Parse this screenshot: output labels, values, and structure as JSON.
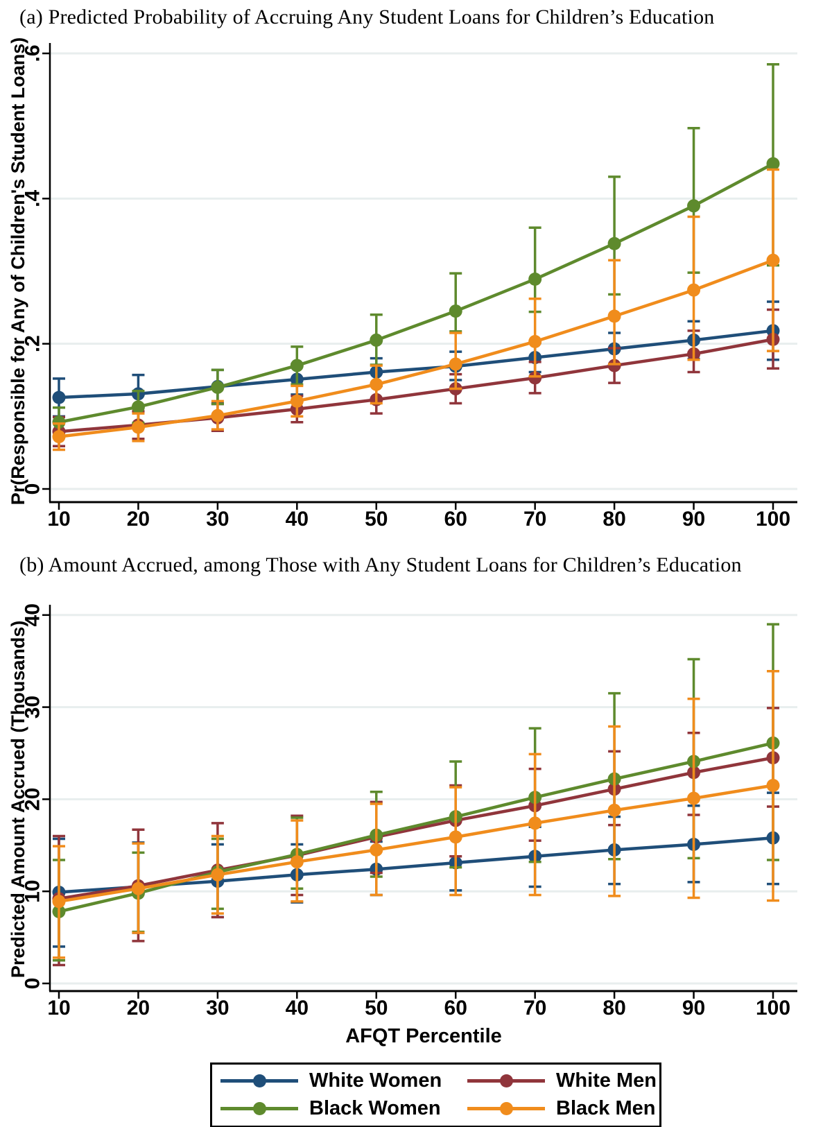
{
  "panels": [
    {
      "title": "(a)  Predicted Probability of Accruing Any Student Loans for Children’s Education"
    },
    {
      "title": "(b)  Amount Accrued, among Those with Any Student Loans for Children’s Education"
    }
  ],
  "style": {
    "grid_color": "#e8eeee",
    "axis_color": "#000000",
    "background": "#ffffff"
  },
  "legend": {
    "entries": [
      {
        "label": "White Women",
        "color": "#1f4e79"
      },
      {
        "label": "White Men",
        "color": "#90353b"
      },
      {
        "label": "Black Women",
        "color": "#5e8a2d"
      },
      {
        "label": "Black Men",
        "color": "#f08c1c"
      }
    ]
  },
  "chart_data": [
    {
      "type": "line",
      "title": "(a) Predicted Probability of Accruing Any Student Loans for Children's Education",
      "ylabel": "Pr(Responsible for Any of Children's Student Loans)",
      "xlabel": "",
      "ylim": [
        0,
        0.6
      ],
      "yticks": {
        "values": [
          0,
          0.2,
          0.4,
          0.6
        ],
        "labels": [
          "0",
          ".2",
          ".4",
          ".6"
        ]
      },
      "x": [
        10,
        20,
        30,
        40,
        50,
        60,
        70,
        80,
        90,
        100
      ],
      "grid": true,
      "legend_position": "bottom",
      "series": [
        {
          "name": "White Women",
          "color": "#1f4e79",
          "values": [
            0.126,
            0.131,
            0.141,
            0.151,
            0.161,
            0.169,
            0.181,
            0.193,
            0.205,
            0.218
          ],
          "ci_low": [
            0.1,
            0.106,
            0.118,
            0.13,
            0.142,
            0.15,
            0.161,
            0.172,
            0.179,
            0.178
          ],
          "ci_high": [
            0.152,
            0.157,
            0.164,
            0.172,
            0.18,
            0.189,
            0.201,
            0.215,
            0.231,
            0.258
          ]
        },
        {
          "name": "White Men",
          "color": "#90353b",
          "values": [
            0.079,
            0.088,
            0.098,
            0.11,
            0.123,
            0.138,
            0.153,
            0.17,
            0.186,
            0.206
          ],
          "ci_low": [
            0.059,
            0.069,
            0.08,
            0.092,
            0.104,
            0.118,
            0.132,
            0.146,
            0.161,
            0.166
          ],
          "ci_high": [
            0.099,
            0.107,
            0.117,
            0.128,
            0.142,
            0.158,
            0.175,
            0.194,
            0.218,
            0.247
          ]
        },
        {
          "name": "Black Women",
          "color": "#5e8a2d",
          "values": [
            0.092,
            0.113,
            0.14,
            0.17,
            0.205,
            0.245,
            0.289,
            0.338,
            0.39,
            0.448
          ],
          "ci_low": [
            0.072,
            0.091,
            0.117,
            0.144,
            0.171,
            0.217,
            0.244,
            0.268,
            0.298,
            0.308
          ],
          "ci_high": [
            0.112,
            0.135,
            0.164,
            0.196,
            0.24,
            0.297,
            0.36,
            0.43,
            0.497,
            0.585
          ]
        },
        {
          "name": "Black Men",
          "color": "#f08c1c",
          "values": [
            0.072,
            0.085,
            0.101,
            0.121,
            0.144,
            0.172,
            0.203,
            0.238,
            0.274,
            0.315
          ],
          "ci_low": [
            0.054,
            0.066,
            0.082,
            0.1,
            0.118,
            0.138,
            0.155,
            0.172,
            0.178,
            0.19
          ],
          "ci_high": [
            0.09,
            0.104,
            0.121,
            0.142,
            0.17,
            0.215,
            0.262,
            0.315,
            0.375,
            0.44
          ]
        }
      ]
    },
    {
      "type": "line",
      "title": "(b) Amount Accrued, among Those with Any Student Loans for Children's Education",
      "ylabel": "Predicted Amount Accrued (Thousands)",
      "xlabel": "AFQT Percentile",
      "ylim": [
        0,
        40
      ],
      "yticks": {
        "values": [
          0,
          10,
          20,
          30,
          40
        ],
        "labels": [
          "0",
          "10",
          "20",
          "30",
          "40"
        ]
      },
      "x": [
        10,
        20,
        30,
        40,
        50,
        60,
        70,
        80,
        90,
        100
      ],
      "grid": true,
      "legend_position": "bottom",
      "series": [
        {
          "name": "White Women",
          "color": "#1f4e79",
          "values": [
            9.9,
            10.5,
            11.1,
            11.8,
            12.4,
            13.1,
            13.8,
            14.5,
            15.1,
            15.8
          ],
          "ci_low": [
            4.0,
            5.5,
            7.2,
            8.8,
            9.6,
            10.1,
            10.5,
            10.8,
            11.0,
            10.8
          ],
          "ci_high": [
            15.7,
            15.3,
            15.1,
            15.1,
            15.4,
            16.0,
            17.0,
            18.1,
            19.3,
            20.7
          ]
        },
        {
          "name": "White Men",
          "color": "#90353b",
          "values": [
            9.2,
            10.6,
            12.3,
            13.9,
            15.9,
            17.7,
            19.3,
            21.1,
            22.9,
            24.5
          ],
          "ci_low": [
            2.0,
            4.6,
            7.2,
            9.6,
            12.0,
            13.8,
            15.5,
            17.2,
            18.3,
            19.2
          ],
          "ci_high": [
            16.0,
            16.7,
            17.4,
            18.2,
            19.7,
            21.5,
            23.3,
            25.2,
            27.2,
            29.9
          ]
        },
        {
          "name": "Black Women",
          "color": "#5e8a2d",
          "values": [
            7.8,
            9.8,
            12.1,
            14.0,
            16.1,
            18.1,
            20.2,
            22.2,
            24.1,
            26.1
          ],
          "ci_low": [
            2.5,
            5.6,
            8.1,
            10.3,
            11.6,
            12.6,
            13.2,
            13.5,
            13.6,
            13.4
          ],
          "ci_high": [
            13.4,
            14.2,
            15.7,
            18.0,
            20.8,
            24.1,
            27.7,
            31.5,
            35.2,
            39.0
          ]
        },
        {
          "name": "Black Men",
          "color": "#f08c1c",
          "values": [
            8.9,
            10.3,
            11.8,
            13.2,
            14.5,
            15.9,
            17.4,
            18.8,
            20.1,
            21.5
          ],
          "ci_low": [
            2.8,
            5.5,
            7.6,
            8.9,
            9.6,
            9.6,
            9.6,
            9.5,
            9.3,
            9.0
          ],
          "ci_high": [
            14.9,
            15.2,
            16.0,
            17.7,
            19.5,
            21.3,
            24.9,
            27.9,
            30.9,
            33.9
          ]
        }
      ]
    }
  ]
}
